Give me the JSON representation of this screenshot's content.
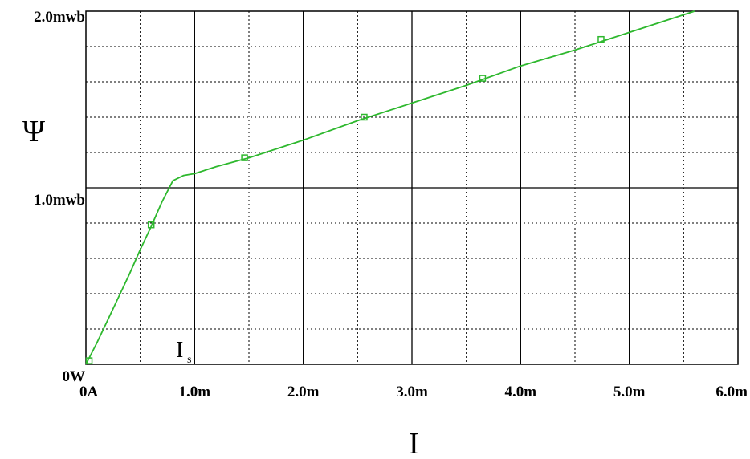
{
  "chart_data": {
    "type": "line",
    "title": "",
    "xlabel": "I",
    "ylabel": "Ψ",
    "x_ticks": [
      "0A",
      "1.0m",
      "2.0m",
      "3.0m",
      "4.0m",
      "5.0m",
      "6.0m"
    ],
    "y_ticks": [
      "0W",
      "1.0mwb",
      "2.0mwb"
    ],
    "xlim": [
      0,
      6.0
    ],
    "ylim": [
      0,
      2.0
    ],
    "x_unit": "mA",
    "y_unit": "mWb",
    "grid": true,
    "annotation": {
      "text": "I",
      "subscript": "s"
    },
    "series": [
      {
        "color": "#2eb82e",
        "marker": "square-open",
        "points": [
          {
            "x": 0.0,
            "y": 0.0
          },
          {
            "x": 0.1,
            "y": 0.12
          },
          {
            "x": 0.2,
            "y": 0.25
          },
          {
            "x": 0.3,
            "y": 0.38
          },
          {
            "x": 0.4,
            "y": 0.51
          },
          {
            "x": 0.5,
            "y": 0.65
          },
          {
            "x": 0.6,
            "y": 0.78
          },
          {
            "x": 0.7,
            "y": 0.92
          },
          {
            "x": 0.8,
            "y": 1.04
          },
          {
            "x": 0.9,
            "y": 1.07
          },
          {
            "x": 1.0,
            "y": 1.08
          },
          {
            "x": 1.2,
            "y": 1.12
          },
          {
            "x": 1.5,
            "y": 1.17
          },
          {
            "x": 2.0,
            "y": 1.27
          },
          {
            "x": 2.5,
            "y": 1.38
          },
          {
            "x": 3.0,
            "y": 1.48
          },
          {
            "x": 3.5,
            "y": 1.58
          },
          {
            "x": 4.0,
            "y": 1.69
          },
          {
            "x": 4.5,
            "y": 1.78
          },
          {
            "x": 5.0,
            "y": 1.88
          },
          {
            "x": 5.6,
            "y": 2.0
          }
        ],
        "markers": [
          {
            "x": 0.03,
            "y": 0.02
          },
          {
            "x": 0.6,
            "y": 0.79
          },
          {
            "x": 1.46,
            "y": 1.17
          },
          {
            "x": 2.56,
            "y": 1.4
          },
          {
            "x": 3.65,
            "y": 1.62
          },
          {
            "x": 4.74,
            "y": 1.84
          }
        ]
      }
    ]
  }
}
